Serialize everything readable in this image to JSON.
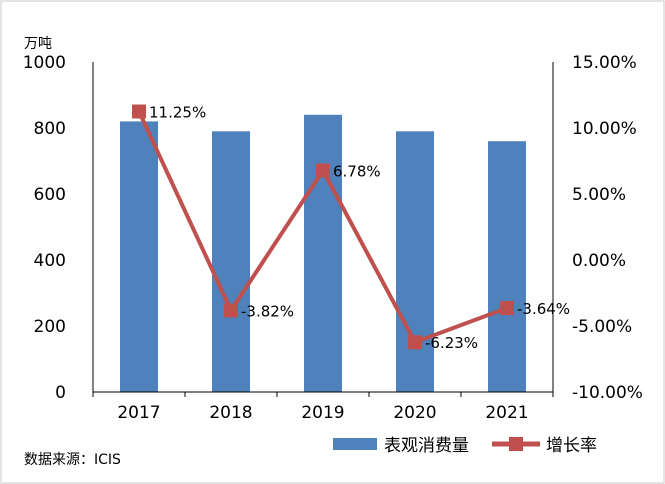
{
  "chart_data": {
    "type": "bar",
    "categories": [
      "2017",
      "2018",
      "2019",
      "2020",
      "2021"
    ],
    "y_unit": "万吨",
    "ylim": [
      0,
      1000
    ],
    "y_ticks": [
      "0",
      "200",
      "400",
      "600",
      "800",
      "1000"
    ],
    "y2lim": [
      -10,
      15
    ],
    "y2_ticks": [
      "-10.00%",
      "-5.00%",
      "0.00%",
      "5.00%",
      "10.00%",
      "15.00%"
    ],
    "grid": false,
    "legend_position": "bottom-right",
    "series": [
      {
        "name": "表观消费量",
        "type": "bar",
        "axis": "left",
        "color": "#4F81BD",
        "values": [
          820,
          790,
          840,
          790,
          760
        ]
      },
      {
        "name": "增长率",
        "type": "line",
        "axis": "right",
        "color": "#C0504D",
        "values": [
          11.25,
          -3.82,
          6.78,
          -6.23,
          -3.64
        ],
        "labels": [
          "11.25%",
          "-3.82%",
          "6.78%",
          "-6.23%",
          "-3.64%"
        ]
      }
    ],
    "source": "数据来源：ICIS"
  }
}
